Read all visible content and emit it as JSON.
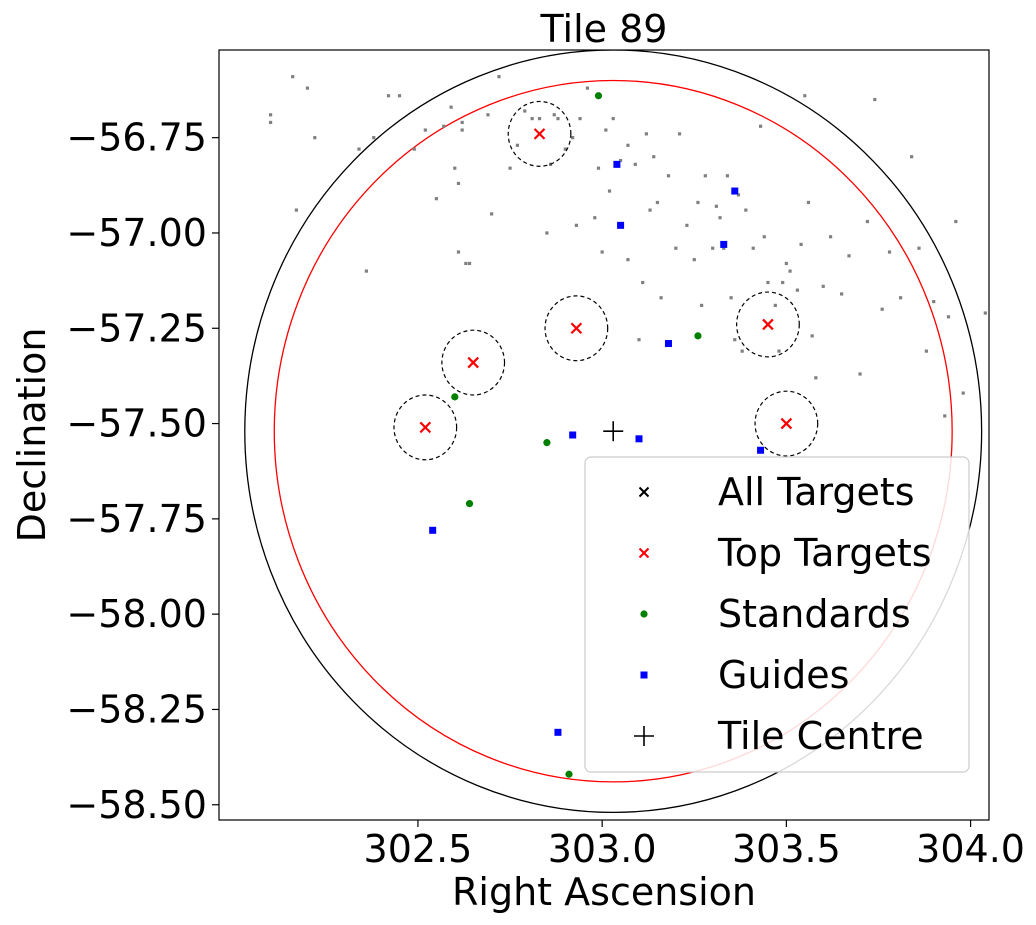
{
  "chart_data": {
    "type": "scatter",
    "title": "Tile 89",
    "xlabel": "Right Ascension",
    "ylabel": "Declination",
    "xlim": [
      301.96,
      304.05
    ],
    "ylim": [
      -58.54,
      -56.52
    ],
    "xticks": [
      302.5,
      303.0,
      303.5,
      304.0
    ],
    "xtick_labels": [
      "302.5",
      "303.0",
      "303.5",
      "304.0"
    ],
    "yticks": [
      -56.75,
      -57.0,
      -57.25,
      -57.5,
      -57.75,
      -58.0,
      -58.25,
      -58.5
    ],
    "ytick_labels": [
      "−56.75",
      "−57.00",
      "−57.25",
      "−57.50",
      "−57.75",
      "−58.00",
      "−58.25",
      "−58.50"
    ],
    "grid": false,
    "legend_position": "lower-right",
    "legend": [
      {
        "label": "All Targets",
        "marker": "x",
        "color": "#000000"
      },
      {
        "label": "Top Targets",
        "marker": "x",
        "color": "#ff0000"
      },
      {
        "label": "Standards",
        "marker": "circle",
        "color": "#008000"
      },
      {
        "label": "Guides",
        "marker": "square",
        "color": "#0000ff"
      },
      {
        "label": "Tile Centre",
        "marker": "plus",
        "color": "#000000"
      }
    ],
    "tile_centre": {
      "x": 303.03,
      "y": -57.52
    },
    "tile_outer_radius_deg": 1.0,
    "tile_inner_radius_deg": 0.92,
    "top_target_ring_radius_deg": 0.085,
    "series": [
      {
        "name": "All Targets",
        "color": "#808080",
        "points": [
          [
            302.1,
            -56.69
          ],
          [
            302.1,
            -56.71
          ],
          [
            302.16,
            -56.59
          ],
          [
            302.17,
            -56.94
          ],
          [
            302.2,
            -56.62
          ],
          [
            302.22,
            -56.75
          ],
          [
            302.34,
            -56.78
          ],
          [
            302.36,
            -57.1
          ],
          [
            302.38,
            -56.75
          ],
          [
            302.42,
            -56.64
          ],
          [
            302.45,
            -56.64
          ],
          [
            302.49,
            -56.78
          ],
          [
            302.52,
            -56.73
          ],
          [
            302.55,
            -56.91
          ],
          [
            302.57,
            -56.72
          ],
          [
            302.59,
            -56.67
          ],
          [
            302.6,
            -56.83
          ],
          [
            302.61,
            -56.87
          ],
          [
            302.61,
            -57.05
          ],
          [
            302.62,
            -56.71
          ],
          [
            302.62,
            -56.73
          ],
          [
            302.63,
            -57.08
          ],
          [
            302.64,
            -57.08
          ],
          [
            302.69,
            -56.69
          ],
          [
            302.7,
            -56.95
          ],
          [
            302.72,
            -56.59
          ],
          [
            302.75,
            -56.83
          ],
          [
            302.77,
            -56.77
          ],
          [
            302.79,
            -56.68
          ],
          [
            302.81,
            -56.7
          ],
          [
            302.83,
            -56.7
          ],
          [
            302.85,
            -57.0
          ],
          [
            302.86,
            -56.82
          ],
          [
            302.87,
            -56.69
          ],
          [
            302.88,
            -56.7
          ],
          [
            302.9,
            -56.78
          ],
          [
            302.92,
            -56.75
          ],
          [
            302.93,
            -56.98
          ],
          [
            302.94,
            -56.7
          ],
          [
            302.96,
            -56.62
          ],
          [
            302.98,
            -56.96
          ],
          [
            302.99,
            -56.83
          ],
          [
            303.0,
            -57.05
          ],
          [
            303.01,
            -56.73
          ],
          [
            303.02,
            -56.89
          ],
          [
            303.03,
            -56.7
          ],
          [
            303.05,
            -56.81
          ],
          [
            303.07,
            -56.77
          ],
          [
            303.07,
            -57.07
          ],
          [
            303.09,
            -56.82
          ],
          [
            303.1,
            -57.28
          ],
          [
            303.11,
            -57.13
          ],
          [
            303.12,
            -56.74
          ],
          [
            303.13,
            -56.94
          ],
          [
            303.14,
            -56.8
          ],
          [
            303.15,
            -56.92
          ],
          [
            303.16,
            -57.17
          ],
          [
            303.18,
            -56.85
          ],
          [
            303.2,
            -57.04
          ],
          [
            303.21,
            -56.74
          ],
          [
            303.23,
            -56.98
          ],
          [
            303.25,
            -57.07
          ],
          [
            303.26,
            -56.92
          ],
          [
            303.27,
            -57.19
          ],
          [
            303.28,
            -56.85
          ],
          [
            303.3,
            -57.04
          ],
          [
            303.31,
            -56.93
          ],
          [
            303.32,
            -56.96
          ],
          [
            303.33,
            -57.04
          ],
          [
            303.34,
            -56.85
          ],
          [
            303.35,
            -57.17
          ],
          [
            303.36,
            -57.28
          ],
          [
            303.37,
            -56.9
          ],
          [
            303.38,
            -57.31
          ],
          [
            303.39,
            -56.94
          ],
          [
            303.41,
            -57.04
          ],
          [
            303.43,
            -56.72
          ],
          [
            303.44,
            -57.01
          ],
          [
            303.45,
            -57.13
          ],
          [
            303.47,
            -57.19
          ],
          [
            303.48,
            -57.31
          ],
          [
            303.49,
            -57.13
          ],
          [
            303.5,
            -57.08
          ],
          [
            303.51,
            -57.1
          ],
          [
            303.53,
            -57.15
          ],
          [
            303.54,
            -57.03
          ],
          [
            303.55,
            -56.64
          ],
          [
            303.56,
            -56.92
          ],
          [
            303.57,
            -57.27
          ],
          [
            303.58,
            -57.38
          ],
          [
            303.6,
            -57.14
          ],
          [
            303.62,
            -57.01
          ],
          [
            303.65,
            -57.16
          ],
          [
            303.67,
            -57.06
          ],
          [
            303.7,
            -57.37
          ],
          [
            303.72,
            -56.97
          ],
          [
            303.74,
            -56.65
          ],
          [
            303.76,
            -57.2
          ],
          [
            303.78,
            -57.05
          ],
          [
            303.81,
            -57.17
          ],
          [
            303.84,
            -56.8
          ],
          [
            303.86,
            -57.04
          ],
          [
            303.88,
            -57.31
          ],
          [
            303.9,
            -57.18
          ],
          [
            303.93,
            -57.48
          ],
          [
            303.94,
            -57.22
          ],
          [
            303.96,
            -56.97
          ],
          [
            303.98,
            -57.42
          ],
          [
            304.04,
            -57.21
          ]
        ]
      },
      {
        "name": "Top Targets",
        "color": "#ff0000",
        "points": [
          [
            302.83,
            -56.74
          ],
          [
            302.93,
            -57.25
          ],
          [
            302.65,
            -57.34
          ],
          [
            302.52,
            -57.51
          ],
          [
            303.45,
            -57.24
          ],
          [
            303.5,
            -57.5
          ]
        ]
      },
      {
        "name": "Standards",
        "color": "#008000",
        "points": [
          [
            302.99,
            -56.64
          ],
          [
            302.6,
            -57.43
          ],
          [
            302.85,
            -57.55
          ],
          [
            302.64,
            -57.71
          ],
          [
            303.26,
            -57.27
          ],
          [
            302.91,
            -58.42
          ]
        ]
      },
      {
        "name": "Guides",
        "color": "#0000ff",
        "points": [
          [
            303.04,
            -56.82
          ],
          [
            303.05,
            -56.98
          ],
          [
            303.36,
            -56.89
          ],
          [
            303.33,
            -57.03
          ],
          [
            303.18,
            -57.29
          ],
          [
            302.92,
            -57.53
          ],
          [
            303.1,
            -57.54
          ],
          [
            303.43,
            -57.57
          ],
          [
            302.54,
            -57.78
          ],
          [
            302.88,
            -58.31
          ]
        ]
      }
    ]
  }
}
